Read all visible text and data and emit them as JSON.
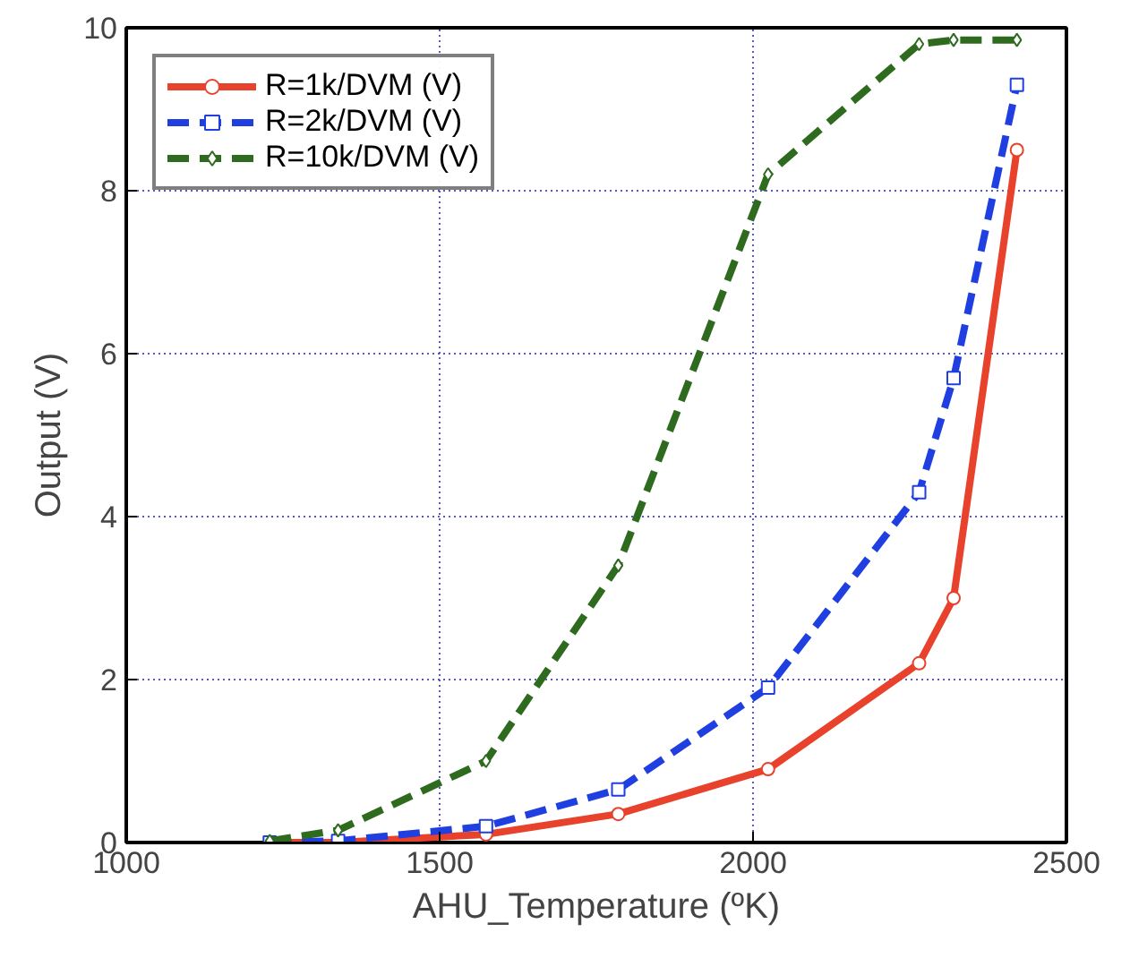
{
  "chart_data": {
    "type": "line",
    "xlabel": "AHU_Temperature (ºK)",
    "ylabel": "Output (V)",
    "x": [
      1229,
      1338,
      1574,
      1785,
      2024,
      2265,
      2320,
      2421
    ],
    "series": [
      {
        "name": "R=1k/DVM (V)",
        "color": "#e8412c",
        "values": [
          0,
          0,
          0.1,
          0.35,
          0.9,
          2.2,
          3.0,
          8.5
        ],
        "marker": "circle",
        "line_style": "solid"
      },
      {
        "name": "R=2k/DVM (V)",
        "color": "#1f3fe0",
        "values": [
          0,
          0.02,
          0.2,
          0.65,
          1.9,
          4.3,
          5.7,
          9.3
        ],
        "marker": "square",
        "line_style": "dashed"
      },
      {
        "name": "R=10k/DVM (V)",
        "color": "#2e6b1f",
        "values": [
          0.02,
          0.15,
          1.0,
          3.4,
          8.2,
          9.8,
          9.85,
          9.85
        ],
        "marker": "diamond",
        "line_style": "dashed"
      }
    ],
    "xlim": [
      1000,
      2500
    ],
    "ylim": [
      0,
      10
    ],
    "xticks": [
      1000,
      1500,
      2000,
      2500
    ],
    "yticks": [
      0,
      2,
      4,
      6,
      8,
      10
    ],
    "grid": true,
    "legend": "top left"
  }
}
